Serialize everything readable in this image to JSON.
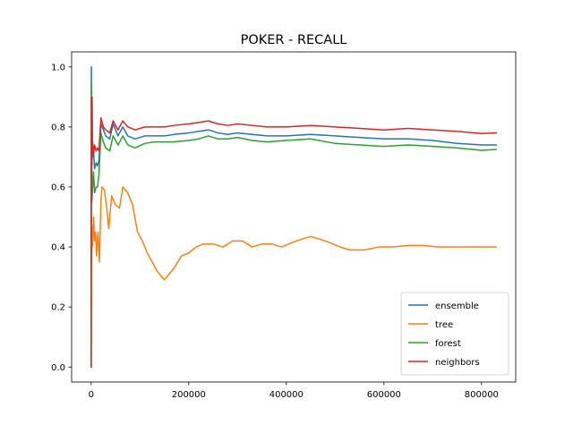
{
  "chart_data": {
    "type": "line",
    "title": "POKER - RECALL",
    "xlabel": "",
    "ylabel": "",
    "xlim": [
      -40000,
      870000
    ],
    "ylim": [
      -0.05,
      1.05
    ],
    "xticks": [
      0,
      200000,
      400000,
      600000,
      800000
    ],
    "xtick_labels": [
      "0",
      "200000",
      "400000",
      "600000",
      "800000"
    ],
    "yticks": [
      0.0,
      0.2,
      0.4,
      0.6,
      0.8,
      1.0
    ],
    "ytick_labels": [
      "0.0",
      "0.2",
      "0.4",
      "0.6",
      "0.8",
      "1.0"
    ],
    "grid": false,
    "legend_position": "lower-right",
    "series": [
      {
        "name": "ensemble",
        "color": "#1f77b4",
        "points": [
          [
            0,
            0.0
          ],
          [
            500,
            1.0
          ],
          [
            1000,
            0.6
          ],
          [
            2000,
            0.9
          ],
          [
            3000,
            0.7
          ],
          [
            5000,
            0.72
          ],
          [
            7000,
            0.66
          ],
          [
            10000,
            0.68
          ],
          [
            13000,
            0.67
          ],
          [
            16000,
            0.69
          ],
          [
            20000,
            0.81
          ],
          [
            25000,
            0.79
          ],
          [
            30000,
            0.77
          ],
          [
            38000,
            0.76
          ],
          [
            45000,
            0.81
          ],
          [
            55000,
            0.77
          ],
          [
            65000,
            0.8
          ],
          [
            75000,
            0.77
          ],
          [
            90000,
            0.76
          ],
          [
            110000,
            0.77
          ],
          [
            130000,
            0.77
          ],
          [
            150000,
            0.77
          ],
          [
            170000,
            0.775
          ],
          [
            200000,
            0.78
          ],
          [
            220000,
            0.785
          ],
          [
            240000,
            0.79
          ],
          [
            260000,
            0.78
          ],
          [
            280000,
            0.775
          ],
          [
            300000,
            0.78
          ],
          [
            330000,
            0.775
          ],
          [
            360000,
            0.77
          ],
          [
            400000,
            0.77
          ],
          [
            450000,
            0.775
          ],
          [
            500000,
            0.77
          ],
          [
            550000,
            0.765
          ],
          [
            600000,
            0.76
          ],
          [
            650000,
            0.76
          ],
          [
            700000,
            0.755
          ],
          [
            750000,
            0.745
          ],
          [
            800000,
            0.74
          ],
          [
            830000,
            0.74
          ]
        ]
      },
      {
        "name": "tree",
        "color": "#ff7f0e",
        "points": [
          [
            0,
            0.0
          ],
          [
            500,
            0.33
          ],
          [
            1500,
            0.47
          ],
          [
            3000,
            0.4
          ],
          [
            5000,
            0.5
          ],
          [
            7000,
            0.42
          ],
          [
            9000,
            0.45
          ],
          [
            11000,
            0.37
          ],
          [
            14000,
            0.45
          ],
          [
            17000,
            0.35
          ],
          [
            20000,
            0.55
          ],
          [
            22000,
            0.6
          ],
          [
            27000,
            0.59
          ],
          [
            32000,
            0.53
          ],
          [
            36000,
            0.46
          ],
          [
            42000,
            0.57
          ],
          [
            50000,
            0.54
          ],
          [
            58000,
            0.53
          ],
          [
            65000,
            0.6
          ],
          [
            75000,
            0.58
          ],
          [
            85000,
            0.54
          ],
          [
            95000,
            0.45
          ],
          [
            105000,
            0.42
          ],
          [
            115000,
            0.38
          ],
          [
            125000,
            0.35
          ],
          [
            135000,
            0.32
          ],
          [
            145000,
            0.3
          ],
          [
            150000,
            0.29
          ],
          [
            160000,
            0.31
          ],
          [
            170000,
            0.33
          ],
          [
            185000,
            0.37
          ],
          [
            200000,
            0.38
          ],
          [
            215000,
            0.4
          ],
          [
            230000,
            0.41
          ],
          [
            250000,
            0.41
          ],
          [
            270000,
            0.4
          ],
          [
            290000,
            0.42
          ],
          [
            310000,
            0.42
          ],
          [
            330000,
            0.4
          ],
          [
            350000,
            0.41
          ],
          [
            370000,
            0.41
          ],
          [
            390000,
            0.4
          ],
          [
            420000,
            0.42
          ],
          [
            450000,
            0.435
          ],
          [
            480000,
            0.42
          ],
          [
            510000,
            0.4
          ],
          [
            530000,
            0.39
          ],
          [
            560000,
            0.39
          ],
          [
            590000,
            0.4
          ],
          [
            620000,
            0.4
          ],
          [
            650000,
            0.405
          ],
          [
            680000,
            0.405
          ],
          [
            710000,
            0.4
          ],
          [
            740000,
            0.4
          ],
          [
            770000,
            0.4
          ],
          [
            800000,
            0.4
          ],
          [
            830000,
            0.4
          ]
        ]
      },
      {
        "name": "forest",
        "color": "#2ca02c",
        "points": [
          [
            0,
            0.0
          ],
          [
            500,
            0.95
          ],
          [
            1500,
            0.55
          ],
          [
            3000,
            0.6
          ],
          [
            5000,
            0.65
          ],
          [
            7000,
            0.58
          ],
          [
            10000,
            0.6
          ],
          [
            13000,
            0.6
          ],
          [
            16000,
            0.64
          ],
          [
            20000,
            0.78
          ],
          [
            25000,
            0.75
          ],
          [
            30000,
            0.73
          ],
          [
            38000,
            0.72
          ],
          [
            45000,
            0.77
          ],
          [
            55000,
            0.74
          ],
          [
            65000,
            0.77
          ],
          [
            75000,
            0.74
          ],
          [
            90000,
            0.73
          ],
          [
            110000,
            0.745
          ],
          [
            130000,
            0.75
          ],
          [
            150000,
            0.75
          ],
          [
            170000,
            0.75
          ],
          [
            200000,
            0.755
          ],
          [
            220000,
            0.76
          ],
          [
            240000,
            0.77
          ],
          [
            260000,
            0.76
          ],
          [
            280000,
            0.76
          ],
          [
            300000,
            0.765
          ],
          [
            330000,
            0.755
          ],
          [
            360000,
            0.75
          ],
          [
            400000,
            0.755
          ],
          [
            450000,
            0.76
          ],
          [
            500000,
            0.745
          ],
          [
            550000,
            0.74
          ],
          [
            600000,
            0.735
          ],
          [
            650000,
            0.74
          ],
          [
            700000,
            0.735
          ],
          [
            750000,
            0.73
          ],
          [
            800000,
            0.722
          ],
          [
            830000,
            0.725
          ]
        ]
      },
      {
        "name": "neighbors",
        "color": "#d62728",
        "points": [
          [
            0,
            0.0
          ],
          [
            500,
            0.9
          ],
          [
            1500,
            0.67
          ],
          [
            3000,
            0.75
          ],
          [
            5000,
            0.71
          ],
          [
            7000,
            0.74
          ],
          [
            10000,
            0.72
          ],
          [
            13000,
            0.73
          ],
          [
            16000,
            0.72
          ],
          [
            20000,
            0.83
          ],
          [
            25000,
            0.8
          ],
          [
            30000,
            0.79
          ],
          [
            38000,
            0.78
          ],
          [
            45000,
            0.82
          ],
          [
            55000,
            0.79
          ],
          [
            65000,
            0.82
          ],
          [
            75000,
            0.8
          ],
          [
            90000,
            0.79
          ],
          [
            110000,
            0.8
          ],
          [
            130000,
            0.8
          ],
          [
            150000,
            0.8
          ],
          [
            170000,
            0.805
          ],
          [
            200000,
            0.81
          ],
          [
            220000,
            0.815
          ],
          [
            240000,
            0.82
          ],
          [
            260000,
            0.81
          ],
          [
            280000,
            0.805
          ],
          [
            300000,
            0.81
          ],
          [
            330000,
            0.805
          ],
          [
            360000,
            0.8
          ],
          [
            400000,
            0.8
          ],
          [
            450000,
            0.805
          ],
          [
            500000,
            0.8
          ],
          [
            550000,
            0.795
          ],
          [
            600000,
            0.79
          ],
          [
            650000,
            0.795
          ],
          [
            700000,
            0.79
          ],
          [
            750000,
            0.785
          ],
          [
            800000,
            0.778
          ],
          [
            830000,
            0.78
          ]
        ]
      }
    ]
  }
}
